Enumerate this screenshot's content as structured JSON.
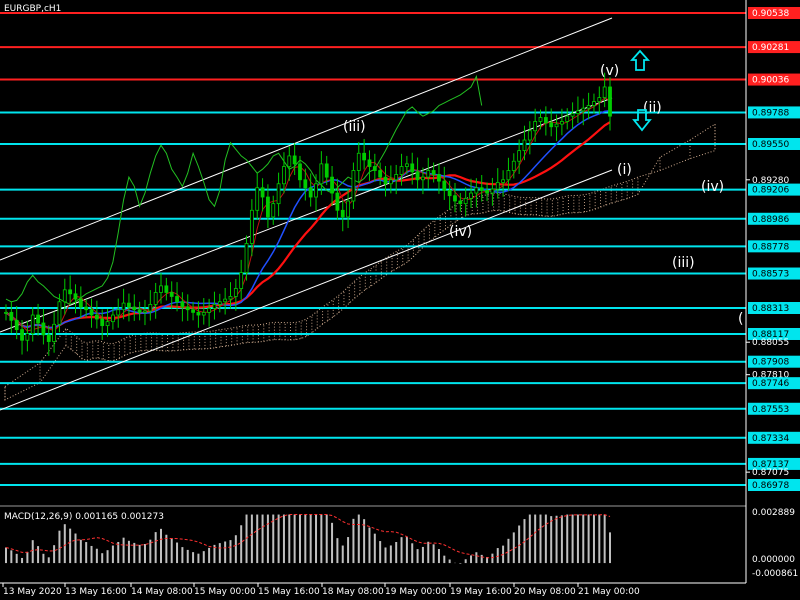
{
  "window": {
    "title": "EURGBP,cH1"
  },
  "indicator": {
    "macd_label": "MACD(12,26,9) 0.001165 0.001273"
  },
  "colors": {
    "background": "#000000",
    "candles": "#00cc00",
    "red_level": "#ff2020",
    "cyan_level": "#00e5ee",
    "ma_red": "#ff1010",
    "ma_blue": "#2050ff",
    "chikou": "#22c022",
    "cloud": "#e8c0a0",
    "macd_hist": "#c0c0c0",
    "macd_signal": "#ff3030",
    "channel": "#ffffff",
    "arrow": "#00e5ee"
  },
  "chart_data": {
    "type": "candlestick",
    "symbol": "EURGBP",
    "timeframe": "H1",
    "ylim": [
      0.8675,
      0.9058
    ],
    "y_tick_labels": [
      "0.90538",
      "0.90281",
      "0.90036",
      "0.89788",
      "0.89550",
      "0.89280",
      "0.89206",
      "0.88986",
      "0.88778",
      "0.88573",
      "0.88313",
      "0.88117",
      "0.88055",
      "0.87908",
      "0.87810",
      "0.87746",
      "0.87553",
      "0.87334",
      "0.87137",
      "0.87075",
      "0.86978"
    ],
    "red_levels": [
      0.90538,
      0.90281,
      0.90036
    ],
    "cyan_levels": [
      0.89788,
      0.8955,
      0.89206,
      0.88986,
      0.88778,
      0.88573,
      0.88313,
      0.88117,
      0.87908,
      0.87746,
      0.87553,
      0.87334,
      0.87137,
      0.86978
    ],
    "x_tick_labels": [
      "13 May 2020",
      "13 May 16:00",
      "14 May 08:00",
      "15 May 00:00",
      "15 May 16:00",
      "18 May 08:00",
      "19 May 00:00",
      "19 May 16:00",
      "20 May 08:00",
      "21 May 00:00"
    ],
    "close": [
      0.8828,
      0.8822,
      0.8815,
      0.8807,
      0.8812,
      0.8826,
      0.882,
      0.8811,
      0.8806,
      0.8819,
      0.8836,
      0.8845,
      0.8842,
      0.8838,
      0.8832,
      0.883,
      0.8826,
      0.8823,
      0.8818,
      0.8821,
      0.8826,
      0.883,
      0.8835,
      0.8832,
      0.883,
      0.8828,
      0.8829,
      0.8834,
      0.8843,
      0.8848,
      0.8843,
      0.884,
      0.8836,
      0.8832,
      0.883,
      0.8828,
      0.8826,
      0.8828,
      0.8831,
      0.8834,
      0.8836,
      0.8838,
      0.884,
      0.8846,
      0.8858,
      0.888,
      0.8905,
      0.8922,
      0.8915,
      0.89,
      0.891,
      0.8925,
      0.8938,
      0.8946,
      0.894,
      0.8928,
      0.8922,
      0.8915,
      0.8925,
      0.894,
      0.893,
      0.8918,
      0.8905,
      0.89,
      0.8912,
      0.8935,
      0.8948,
      0.8943,
      0.8938,
      0.8935,
      0.893,
      0.8925,
      0.8928,
      0.8932,
      0.8938,
      0.894,
      0.8934,
      0.8928,
      0.893,
      0.8935,
      0.8932,
      0.8927,
      0.892,
      0.8916,
      0.8912,
      0.891,
      0.8914,
      0.8918,
      0.8922,
      0.892,
      0.8918,
      0.8921,
      0.8926,
      0.8928,
      0.8935,
      0.8942,
      0.895,
      0.8958,
      0.8965,
      0.8972,
      0.8975,
      0.8971,
      0.8968,
      0.897,
      0.8972,
      0.8976,
      0.8978,
      0.898,
      0.8982,
      0.8984,
      0.8987,
      0.899,
      0.8998,
      0.8976
    ],
    "macd": {
      "label": "MACD(12,26,9) 0.001165 0.001273",
      "y_tick_labels": [
        "0.002889",
        "0.000000",
        "-0.000861"
      ],
      "ylim": [
        -0.000861,
        0.002889
      ],
      "main": 0.001165,
      "signal": 0.001273
    },
    "wave_labels": [
      "(v)",
      "(iii)",
      "(iv)",
      "(ii)",
      "(i)",
      "(iv)",
      "(iii)",
      "("
    ]
  }
}
